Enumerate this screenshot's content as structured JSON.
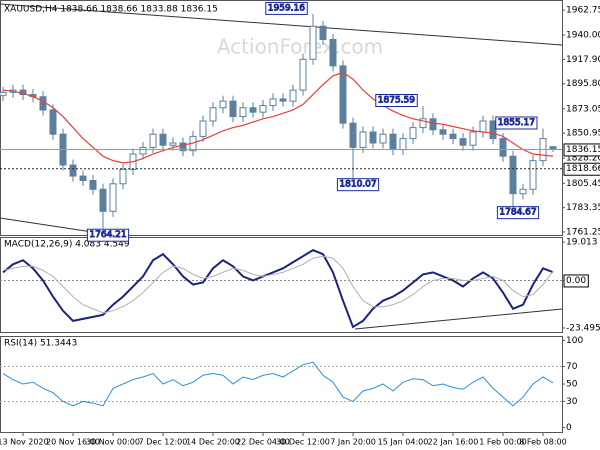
{
  "chart_data": [
    {
      "type": "candlestick",
      "title": "XAUUSD,H4 1838.66 1838.66 1833.88 1836.15",
      "watermark": "ActionForex.com",
      "categories": [
        null,
        null,
        "13 Nov 2020",
        null,
        null,
        null,
        null,
        "20 Nov 16:00",
        null,
        null,
        null,
        "30 Nov 00:00",
        null,
        null,
        null,
        null,
        "7 Dec 12:00",
        null,
        null,
        null,
        null,
        "14 Dec 20:00",
        null,
        null,
        null,
        null,
        "22 Dec 04:00",
        null,
        null,
        null,
        "30 Dec 12:00",
        null,
        null,
        null,
        null,
        "7 Jan 20:00",
        null,
        null,
        null,
        null,
        "15 Jan 04:00",
        null,
        null,
        null,
        null,
        "22 Jan 16:00",
        null,
        null,
        null,
        null,
        "1 Feb 00:00",
        null,
        null,
        null,
        "8 Feb 08:00",
        null
      ],
      "open": [
        1885,
        1888,
        1890,
        1886,
        1884,
        1872,
        1850,
        1822,
        1812,
        1808,
        1800,
        1780,
        1805,
        1818,
        1832,
        1838,
        1850,
        1840,
        1842,
        1835,
        1848,
        1862,
        1874,
        1880,
        1866,
        1874,
        1870,
        1876,
        1882,
        1880,
        1890,
        1918,
        1948,
        1936,
        1912,
        1860,
        1838,
        1852,
        1842,
        1850,
        1836,
        1846,
        1856,
        1864,
        1854,
        1850,
        1846,
        1840,
        1852,
        1862,
        1846,
        1830,
        1796,
        1800,
        1826,
        1838.66
      ],
      "high": [
        1893,
        1895,
        1895,
        1891,
        1889,
        1877,
        1855,
        1827,
        1817,
        1813,
        1805,
        1810,
        1823,
        1837,
        1843,
        1855,
        1855,
        1847,
        1847,
        1853,
        1867,
        1879,
        1885,
        1885,
        1879,
        1879,
        1881,
        1887,
        1887,
        1895,
        1923,
        1959.16,
        1953,
        1941,
        1917,
        1865,
        1857,
        1857,
        1855,
        1855,
        1851,
        1861,
        1875.59,
        1869,
        1859,
        1855,
        1851,
        1857,
        1867,
        1867,
        1851,
        1835,
        1805,
        1831,
        1855.17,
        1838.66
      ],
      "low": [
        1880,
        1883,
        1881,
        1879,
        1867,
        1845,
        1817,
        1807,
        1803,
        1795,
        1764.21,
        1775,
        1800,
        1813,
        1827,
        1833,
        1835,
        1835,
        1830,
        1830,
        1843,
        1857,
        1869,
        1861,
        1861,
        1865,
        1865,
        1871,
        1875,
        1875,
        1885,
        1913,
        1931,
        1907,
        1855,
        1810.07,
        1833,
        1837,
        1837,
        1831,
        1831,
        1841,
        1851,
        1849,
        1845,
        1841,
        1835,
        1835,
        1847,
        1841,
        1825,
        1784.67,
        1791,
        1795,
        1821,
        1833.88
      ],
      "close": [
        1888,
        1890,
        1886,
        1884,
        1872,
        1850,
        1822,
        1812,
        1808,
        1800,
        1780,
        1805,
        1818,
        1832,
        1838,
        1850,
        1840,
        1842,
        1835,
        1848,
        1862,
        1874,
        1880,
        1866,
        1874,
        1870,
        1876,
        1882,
        1880,
        1890,
        1918,
        1948,
        1936,
        1912,
        1860,
        1838,
        1852,
        1842,
        1850,
        1836,
        1846,
        1856,
        1864,
        1854,
        1850,
        1846,
        1840,
        1852,
        1862,
        1846,
        1830,
        1796,
        1800,
        1826,
        1846,
        1836.15
      ],
      "color": "#5d7f9e",
      "ma": {
        "color": "#e8413c",
        "values": [
          1890,
          1889,
          1887,
          1884,
          1880,
          1874,
          1866,
          1856,
          1846,
          1838,
          1830,
          1826,
          1824,
          1825,
          1828,
          1832,
          1835,
          1838,
          1840,
          1842,
          1845,
          1849,
          1853,
          1856,
          1858,
          1861,
          1864,
          1866,
          1869,
          1872,
          1877,
          1886,
          1895,
          1903,
          1906,
          1900,
          1890,
          1882,
          1876,
          1871,
          1867,
          1864,
          1862,
          1860,
          1859,
          1857,
          1855,
          1853,
          1852,
          1851,
          1848,
          1842,
          1836,
          1832,
          1831,
          1830
        ]
      },
      "ylim": [
        1758.5,
        1971.8
      ],
      "yticks": [
        1962.75,
        {
          "value": 1940,
          "label": "1940.00"
        },
        {
          "value": 1917.9,
          "label": "1917.90"
        },
        {
          "value": 1895.8,
          "label": "1895.80"
        },
        1873.05,
        1850.95,
        {
          "value": 1828.2,
          "label": "1828.20"
        },
        1805.45,
        1783.35,
        1761.25
      ],
      "current_price": 1836.15,
      "level_line": 1818.66
    },
    {
      "type": "line",
      "title": "MACD(12,26,9) 4.083 4.549",
      "series": [
        {
          "color": "#1a237e",
          "values": [
            4,
            8,
            10,
            6,
            0,
            -8,
            -15,
            -20,
            -19,
            -18,
            -17,
            -12,
            -8,
            -3,
            2,
            10,
            13,
            8,
            2,
            -2,
            -1,
            6,
            10,
            7,
            2,
            0,
            2,
            4,
            6,
            9,
            12,
            15,
            13,
            4,
            -10,
            -23,
            -20,
            -14,
            -10,
            -8,
            -5,
            -1,
            3,
            4,
            2,
            0,
            -3,
            1,
            4,
            1,
            -6,
            -14,
            -12,
            -2,
            6,
            4.083
          ]
        },
        {
          "color": "#b0b0b0",
          "values": [
            5,
            6,
            7,
            7,
            5,
            2,
            -3,
            -8,
            -12,
            -14,
            -16,
            -15,
            -13,
            -10,
            -6,
            -1,
            4,
            7,
            6,
            3,
            1,
            2,
            4,
            6,
            5,
            3,
            2,
            3,
            4,
            6,
            8,
            11,
            12,
            11,
            6,
            -3,
            -10,
            -13,
            -13,
            -12,
            -10,
            -7,
            -3,
            0,
            1,
            1,
            0,
            0,
            1,
            2,
            0,
            -5,
            -8,
            -7,
            -2,
            4.549
          ]
        }
      ],
      "ylim": [
        -25.5,
        21.5
      ],
      "yticks": [
        19.013,
        {
          "value": 0,
          "label": "0.00"
        },
        -23.495
      ]
    },
    {
      "type": "line",
      "title": "RSI(14) 51.3443",
      "series": [
        {
          "color": "#2f8fd8",
          "values": [
            62,
            55,
            50,
            52,
            45,
            40,
            30,
            25,
            30,
            28,
            25,
            45,
            50,
            55,
            58,
            62,
            50,
            55,
            48,
            52,
            60,
            62,
            60,
            50,
            58,
            55,
            60,
            62,
            58,
            65,
            72,
            75,
            60,
            52,
            35,
            30,
            42,
            45,
            50,
            42,
            52,
            56,
            55,
            48,
            50,
            46,
            44,
            52,
            58,
            45,
            35,
            25,
            35,
            50,
            58,
            51.3443
          ]
        }
      ],
      "ylim": [
        -5,
        105
      ],
      "yticks": [
        100,
        70,
        50,
        30,
        0
      ],
      "reference_lines": [
        70,
        30
      ]
    }
  ]
}
